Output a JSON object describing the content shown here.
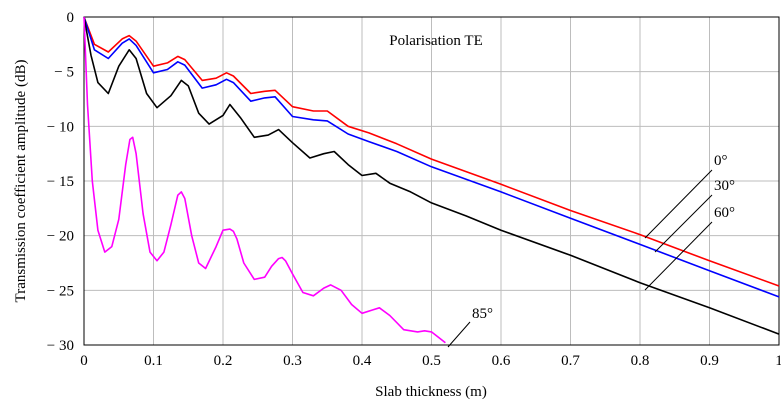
{
  "chart_data": {
    "type": "line",
    "title": "Polarisation TE",
    "xlabel": "Slab thickness (m)",
    "ylabel": "Transmission coefficient amplitude (dB)",
    "xlim": [
      0,
      1
    ],
    "ylim": [
      -30,
      0
    ],
    "xticks": [
      0,
      0.1,
      0.2,
      0.3,
      0.4,
      0.5,
      0.6,
      0.7,
      0.8,
      0.9,
      1
    ],
    "xtick_labels": [
      "0",
      "0.1",
      "0.2",
      "0.3",
      "0.4",
      "0.5",
      "0.6",
      "0.7",
      "0.8",
      "0.9",
      "1"
    ],
    "yticks": [
      0,
      -5,
      -10,
      -15,
      -20,
      -25,
      -30
    ],
    "ytick_labels": [
      "0",
      "− 5",
      "− 10",
      "− 15",
      "− 20",
      "− 25",
      "− 30"
    ],
    "grid": true,
    "series": [
      {
        "name": "0°",
        "color": "#ff0000",
        "x": [
          0,
          0.015,
          0.035,
          0.055,
          0.065,
          0.075,
          0.1,
          0.12,
          0.135,
          0.145,
          0.17,
          0.19,
          0.205,
          0.215,
          0.24,
          0.26,
          0.275,
          0.3,
          0.33,
          0.35,
          0.38,
          0.41,
          0.45,
          0.5,
          0.6,
          0.7,
          0.8,
          0.9,
          1.0
        ],
        "y": [
          0,
          -2.5,
          -3.2,
          -2.0,
          -1.7,
          -2.2,
          -4.5,
          -4.2,
          -3.6,
          -3.9,
          -5.8,
          -5.6,
          -5.1,
          -5.4,
          -7.0,
          -6.8,
          -6.7,
          -8.2,
          -8.6,
          -8.6,
          -10.0,
          -10.6,
          -11.6,
          -13.0,
          -15.3,
          -17.7,
          -19.9,
          -22.3,
          -24.6
        ]
      },
      {
        "name": "30°",
        "color": "#0000ff",
        "x": [
          0,
          0.015,
          0.035,
          0.055,
          0.065,
          0.075,
          0.1,
          0.12,
          0.135,
          0.145,
          0.17,
          0.19,
          0.205,
          0.215,
          0.24,
          0.26,
          0.275,
          0.3,
          0.33,
          0.35,
          0.38,
          0.41,
          0.45,
          0.5,
          0.6,
          0.7,
          0.8,
          0.9,
          1.0
        ],
        "y": [
          0,
          -3.0,
          -3.8,
          -2.4,
          -2.0,
          -2.6,
          -5.1,
          -4.8,
          -4.1,
          -4.4,
          -6.5,
          -6.2,
          -5.7,
          -6.0,
          -7.7,
          -7.4,
          -7.3,
          -9.1,
          -9.4,
          -9.5,
          -10.7,
          -11.4,
          -12.3,
          -13.7,
          -16.0,
          -18.4,
          -20.8,
          -23.2,
          -25.6
        ]
      },
      {
        "name": "60°",
        "color": "#000000",
        "x": [
          0,
          0.01,
          0.02,
          0.035,
          0.05,
          0.065,
          0.075,
          0.09,
          0.105,
          0.125,
          0.14,
          0.15,
          0.165,
          0.18,
          0.2,
          0.21,
          0.225,
          0.245,
          0.265,
          0.28,
          0.3,
          0.325,
          0.345,
          0.36,
          0.38,
          0.4,
          0.42,
          0.44,
          0.47,
          0.5,
          0.55,
          0.6,
          0.7,
          0.8,
          0.9,
          1.0
        ],
        "y": [
          0,
          -3.5,
          -6.0,
          -7.0,
          -4.5,
          -3.0,
          -3.8,
          -7.0,
          -8.3,
          -7.2,
          -5.8,
          -6.3,
          -8.8,
          -9.8,
          -9.0,
          -8.0,
          -9.2,
          -11.0,
          -10.8,
          -10.3,
          -11.5,
          -12.9,
          -12.5,
          -12.3,
          -13.5,
          -14.5,
          -14.3,
          -15.2,
          -16.0,
          -17.0,
          -18.2,
          -19.5,
          -21.8,
          -24.3,
          -26.6,
          -29.0
        ]
      },
      {
        "name": "85°",
        "color": "#ff00ff",
        "x": [
          0,
          0.005,
          0.012,
          0.02,
          0.03,
          0.04,
          0.05,
          0.06,
          0.066,
          0.07,
          0.075,
          0.085,
          0.095,
          0.105,
          0.115,
          0.125,
          0.135,
          0.14,
          0.145,
          0.155,
          0.165,
          0.175,
          0.19,
          0.2,
          0.21,
          0.215,
          0.22,
          0.23,
          0.245,
          0.26,
          0.27,
          0.28,
          0.285,
          0.29,
          0.3,
          0.315,
          0.33,
          0.345,
          0.355,
          0.37,
          0.385,
          0.4,
          0.415,
          0.425,
          0.44,
          0.46,
          0.48,
          0.49,
          0.5,
          0.51,
          0.52
        ],
        "y": [
          0,
          -8.0,
          -15.0,
          -19.5,
          -21.5,
          -21.0,
          -18.5,
          -13.5,
          -11.2,
          -11.0,
          -12.5,
          -18.0,
          -21.5,
          -22.3,
          -21.5,
          -19.0,
          -16.3,
          -16.0,
          -16.6,
          -20.0,
          -22.5,
          -23.0,
          -21.0,
          -19.5,
          -19.4,
          -19.6,
          -20.3,
          -22.5,
          -24.0,
          -23.8,
          -22.8,
          -22.1,
          -22.0,
          -22.3,
          -23.5,
          -25.2,
          -25.5,
          -24.8,
          -24.5,
          -25.0,
          -26.3,
          -27.1,
          -26.8,
          -26.6,
          -27.3,
          -28.6,
          -28.8,
          -28.7,
          -28.8,
          -29.3,
          -29.8
        ]
      }
    ],
    "annotations": [
      {
        "text": "0°",
        "series": 0
      },
      {
        "text": "30°",
        "series": 1
      },
      {
        "text": "60°",
        "series": 2
      },
      {
        "text": "85°",
        "series": 3
      }
    ]
  }
}
